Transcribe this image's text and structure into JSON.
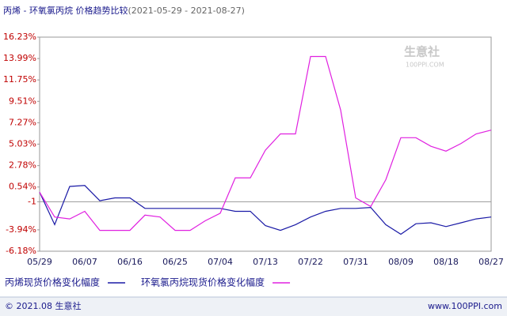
{
  "chart_data": {
    "type": "line",
    "title": "丙烯 - 环氧氯丙烷 价格趋势比较",
    "subtitle": "(2021-05-29 - 2021-08-27)",
    "watermark": "生意社",
    "watermark_sub": "100PPI.COM",
    "footer_left": "© 2021.08 生意社",
    "footer_right": "www.100PPI.com",
    "categories": [
      "05/29",
      null,
      null,
      "06/07",
      null,
      null,
      "06/16",
      null,
      null,
      "06/25",
      null,
      null,
      "07/04",
      null,
      null,
      "07/13",
      null,
      null,
      "07/22",
      null,
      null,
      "07/31",
      null,
      null,
      "08/09",
      null,
      null,
      "08/18",
      null,
      null,
      "08/27"
    ],
    "series": [
      {
        "name": "丙烯现货价格变化幅度",
        "color": "#1a1aa6",
        "values": [
          0,
          -3.4,
          0.6,
          0.7,
          -0.9,
          -0.6,
          -0.6,
          -1.7,
          -1.7,
          -1.7,
          -1.7,
          -1.7,
          -1.7,
          -2.0,
          -2.0,
          -3.5,
          -4.0,
          -3.4,
          -2.6,
          -2.0,
          -1.7,
          -1.7,
          -1.6,
          -3.4,
          -4.4,
          -3.3,
          -3.2,
          -3.6,
          -3.2,
          -2.8,
          -2.6
        ]
      },
      {
        "name": "环氧氯丙烷现货价格变化幅度",
        "color": "#e020e0",
        "values": [
          0,
          -2.6,
          -2.8,
          -2.0,
          -4.0,
          -4.0,
          -4.0,
          -2.4,
          -2.6,
          -4.0,
          -4.0,
          -3.0,
          -2.2,
          1.5,
          1.5,
          4.4,
          6.1,
          6.1,
          14.2,
          14.2,
          8.6,
          -0.6,
          -1.5,
          1.3,
          5.7,
          5.7,
          4.8,
          4.3,
          5.1,
          6.1,
          6.5
        ]
      }
    ],
    "ylim": [
      -6.18,
      16.23
    ],
    "yticks": [
      {
        "value": 16.23,
        "label": "16.23%"
      },
      {
        "value": 13.99,
        "label": "13.99%"
      },
      {
        "value": 11.75,
        "label": "11.75%"
      },
      {
        "value": 9.51,
        "label": "9.51%"
      },
      {
        "value": 7.27,
        "label": "7.27%"
      },
      {
        "value": 5.03,
        "label": "5.03%"
      },
      {
        "value": 2.78,
        "label": "2.78%"
      },
      {
        "value": 0.54,
        "label": "0.54%"
      },
      -1,
      {
        "value": -3.94,
        "label": "-3.94%"
      },
      {
        "value": -6.18,
        "label": "-6.18%"
      }
    ],
    "hline": -1,
    "grid": false
  }
}
